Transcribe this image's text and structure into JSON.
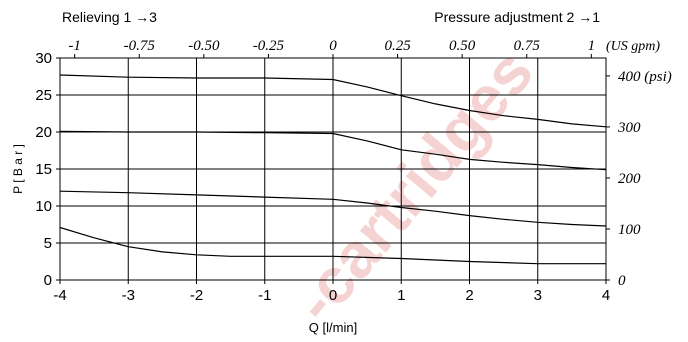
{
  "chart_data": {
    "type": "line",
    "top_left_label": "Relieving 1 →3",
    "top_right_label": "Pressure adjustment 2 →1",
    "xlabel": "Q [l/min]",
    "ylabel": "P [ B a r ]",
    "xlim": [
      -4,
      4
    ],
    "ylim": [
      0,
      30
    ],
    "x_ticks": [
      "-4",
      "-3",
      "-2",
      "-1",
      "0",
      "1",
      "2",
      "3",
      "4"
    ],
    "y_ticks": [
      "0",
      "5",
      "10",
      "15",
      "20",
      "25",
      "30"
    ],
    "top_axis": {
      "unit_label": "(US gpm)",
      "ticks": [
        {
          "label": "-1",
          "value": -1
        },
        {
          "label": "-0.75",
          "value": -0.75
        },
        {
          "label": "-0.50",
          "value": -0.5
        },
        {
          "label": "-0.25",
          "value": -0.25
        },
        {
          "label": "0",
          "value": 0
        },
        {
          "label": "0.25",
          "value": 0.25
        },
        {
          "label": "0.50",
          "value": 0.5
        },
        {
          "label": "0.75",
          "value": 0.75
        },
        {
          "label": "1",
          "value": 1
        }
      ]
    },
    "right_axis": {
      "ticks": [
        {
          "label": "0",
          "value": 0
        },
        {
          "label": "100",
          "value": 100
        },
        {
          "label": "200",
          "value": 200
        },
        {
          "label": "300",
          "value": 300
        },
        {
          "label": "400 (psi)",
          "value": 400
        }
      ]
    },
    "watermark": "-cartridges",
    "grid": true,
    "series": [
      {
        "x": [
          -4,
          -3,
          -2,
          -1,
          0,
          0.5,
          1,
          1.5,
          2,
          2.5,
          3,
          3.5,
          4
        ],
        "y": [
          27.7,
          27.4,
          27.3,
          27.3,
          27.1,
          26.1,
          24.9,
          23.8,
          22.9,
          22.2,
          21.7,
          21.1,
          20.7
        ]
      },
      {
        "x": [
          -4,
          -3,
          -2,
          -1,
          0,
          0.5,
          1,
          1.5,
          2,
          2.5,
          3,
          3.5,
          4
        ],
        "y": [
          20.1,
          20.0,
          20.0,
          19.9,
          19.8,
          18.8,
          17.6,
          17.0,
          16.3,
          15.9,
          15.6,
          15.2,
          14.9
        ]
      },
      {
        "x": [
          -4,
          -3,
          -2,
          -1,
          0,
          0.5,
          1,
          1.5,
          2,
          2.5,
          3,
          3.5,
          4
        ],
        "y": [
          12.0,
          11.8,
          11.5,
          11.2,
          10.9,
          10.4,
          9.8,
          9.3,
          8.7,
          8.2,
          7.8,
          7.5,
          7.3
        ]
      },
      {
        "x": [
          -4,
          -3.5,
          -3,
          -2.5,
          -2,
          -1.5,
          -1,
          0,
          1,
          2,
          3,
          3.5,
          4
        ],
        "y": [
          7.1,
          5.7,
          4.5,
          3.8,
          3.4,
          3.2,
          3.2,
          3.2,
          2.9,
          2.5,
          2.2,
          2.2,
          2.2
        ]
      }
    ]
  }
}
